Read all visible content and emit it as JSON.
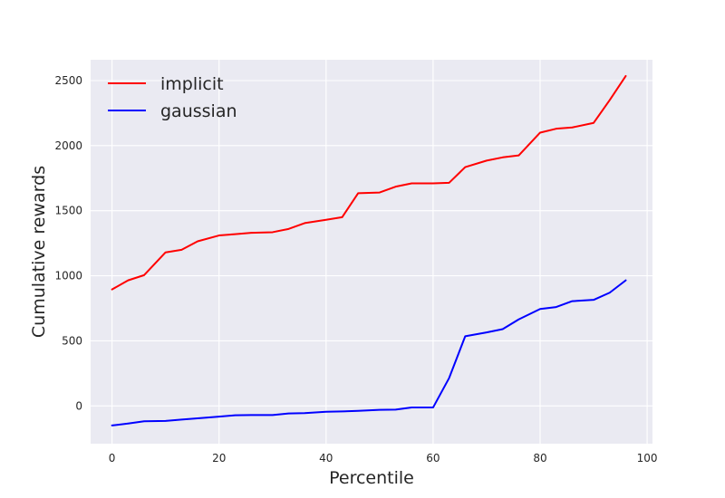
{
  "chart_data": {
    "type": "line",
    "title": "",
    "xlabel": "Percentile",
    "ylabel": "Cumulative rewards",
    "xlim": [
      -4,
      101
    ],
    "ylim": [
      -290,
      2660
    ],
    "xticks": [
      0,
      20,
      40,
      60,
      80,
      100
    ],
    "yticks": [
      0,
      500,
      1000,
      1500,
      2000,
      2500
    ],
    "grid": true,
    "legend_position": "top-left",
    "style": {
      "plot_background": "#EAEAF2",
      "grid_color": "#FFFFFF"
    },
    "series": [
      {
        "name": "implicit",
        "color": "#FF0000",
        "x": [
          0,
          3,
          6,
          10,
          13,
          16,
          20,
          23,
          26,
          30,
          33,
          36,
          40,
          43,
          46,
          50,
          53,
          56,
          60,
          63,
          66,
          70,
          73,
          76,
          80,
          83,
          86,
          90,
          93,
          96
        ],
        "y": [
          895,
          965,
          1005,
          1180,
          1200,
          1265,
          1310,
          1320,
          1330,
          1335,
          1360,
          1405,
          1430,
          1450,
          1635,
          1640,
          1685,
          1710,
          1710,
          1715,
          1835,
          1885,
          1910,
          1925,
          2100,
          2130,
          2140,
          2175,
          2350,
          2535
        ]
      },
      {
        "name": "gaussian",
        "color": "#0000FF",
        "x": [
          0,
          3,
          6,
          10,
          13,
          16,
          20,
          23,
          26,
          30,
          33,
          36,
          40,
          43,
          46,
          50,
          53,
          56,
          60,
          63,
          66,
          70,
          73,
          76,
          80,
          83,
          86,
          90,
          93,
          96
        ],
        "y": [
          -150,
          -135,
          -118,
          -115,
          -105,
          -95,
          -82,
          -72,
          -70,
          -70,
          -58,
          -55,
          -45,
          -42,
          -38,
          -30,
          -28,
          -12,
          -12,
          215,
          535,
          565,
          590,
          665,
          745,
          760,
          805,
          815,
          870,
          965
        ]
      }
    ]
  }
}
